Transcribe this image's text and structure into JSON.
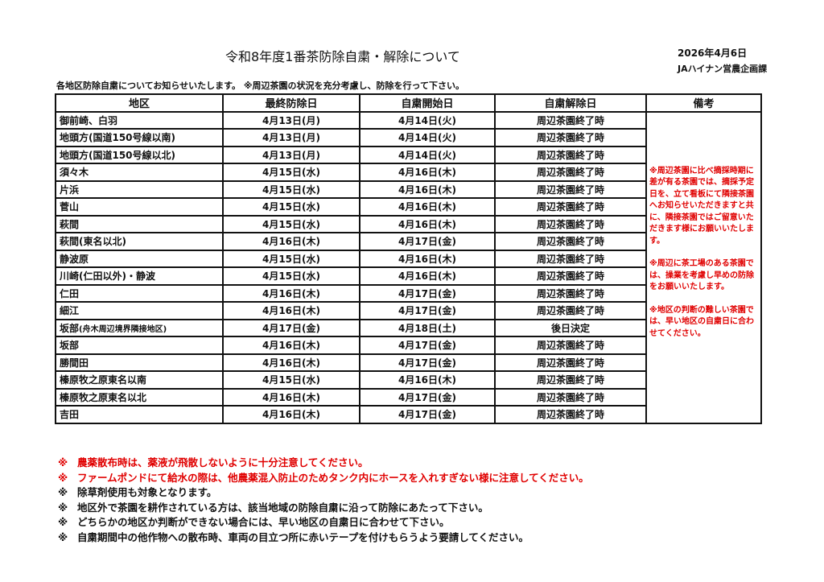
{
  "title": "令和8年度1番茶防除自粛・解除について",
  "date": "2026年4月6日",
  "org": "JAハイナン営農企画課",
  "intro": "各地区防除自粛についてお知らせいたします。 ※周辺茶園の状況を充分考慮し、防除を行って下さい。",
  "headers": [
    "地区",
    "最終防除日",
    "自粛開始日",
    "自粛解除日",
    "備考"
  ],
  "rows": [
    [
      "御前崎、白羽",
      "4月13日(月)",
      "4月14日(火)",
      "周辺茶園終了時"
    ],
    [
      "地頭方(国道150号線以南)",
      "4月13日(月)",
      "4月14日(火)",
      "周辺茶園終了時"
    ],
    [
      "地頭方(国道150号線以北)",
      "4月13日(月)",
      "4月14日(火)",
      "周辺茶園終了時"
    ],
    [
      "須々木",
      "4月15日(水)",
      "4月16日(木)",
      "周辺茶園終了時"
    ],
    [
      "片浜",
      "4月15日(水)",
      "4月16日(木)",
      "周辺茶園終了時"
    ],
    [
      "菅山",
      "4月15日(水)",
      "4月16日(木)",
      "周辺茶園終了時"
    ],
    [
      "萩間",
      "4月15日(水)",
      "4月16日(木)",
      "周辺茶園終了時"
    ],
    [
      "萩間(東名以北)",
      "4月16日(木)",
      "4月17日(金)",
      "周辺茶園終了時"
    ],
    [
      "静波原",
      "4月15日(水)",
      "4月16日(木)",
      "周辺茶園終了時"
    ],
    [
      "川崎(仁田以外)・静波",
      "4月15日(水)",
      "4月16日(木)",
      "周辺茶園終了時"
    ],
    [
      "仁田",
      "4月16日(木)",
      "4月17日(金)",
      "周辺茶園終了時"
    ],
    [
      "細江",
      "4月16日(木)",
      "4月17日(金)",
      "周辺茶園終了時"
    ],
    [
      "坂部",
      "4月17日(金)",
      "4月18日(土)",
      "後日決定"
    ],
    [
      "坂部",
      "4月16日(木)",
      "4月17日(金)",
      "周辺茶園終了時"
    ],
    [
      "勝間田",
      "4月16日(木)",
      "4月17日(金)",
      "周辺茶園終了時"
    ],
    [
      "榛原牧之原東名以南",
      "4月15日(水)",
      "4月16日(木)",
      "周辺茶園終了時"
    ],
    [
      "榛原牧之原東名以北",
      "4月16日(木)",
      "4月17日(金)",
      "周辺茶園終了時"
    ],
    [
      "吉田",
      "4月16日(木)",
      "4月17日(金)",
      "周辺茶園終了時"
    ]
  ],
  "row12_suffix": "(舟木周辺境界隣接地区)",
  "remarks": [
    "※周辺茶園に比べ摘採時期に差が有る茶園では、摘採予定日を、立て看板にて隣接茶園へお知らせいただきますと共に、隣接茶園ではご留意いただきます様にお願いいたします。",
    "※周辺に茶工場のある茶園では、操業を考慮し早めの防除をお願いいたします。",
    "※地区の判断の難しい茶園では、早い地区の自粛日に合わせてください。"
  ],
  "notes": [
    {
      "mark": "※",
      "text": "農薬散布時は、薬液が飛散しないように十分注意してください。",
      "color": "#e00000"
    },
    {
      "mark": "※",
      "text": "ファームポンドにて給水の際は、他農薬混入防止のためタンク内にホースを入れすぎない様に注意してください。",
      "color": "#e00000"
    },
    {
      "mark": "※",
      "text": "除草剤使用も対象となります。",
      "color": "#111111"
    },
    {
      "mark": "※",
      "text": "地区外で茶園を耕作されている方は、該当地域の防除自粛に沿って防除にあたって下さい。",
      "color": "#111111"
    },
    {
      "mark": "※",
      "text": "どちらかの地区か判断ができない場合には、早い地区の自粛日に合わせて下さい。",
      "color": "#111111"
    },
    {
      "mark": "※",
      "text": "自粛期間中の他作物への散布時、車両の目立つ所に赤いテープを付けもらうよう要請してください。",
      "color": "#111111"
    }
  ]
}
